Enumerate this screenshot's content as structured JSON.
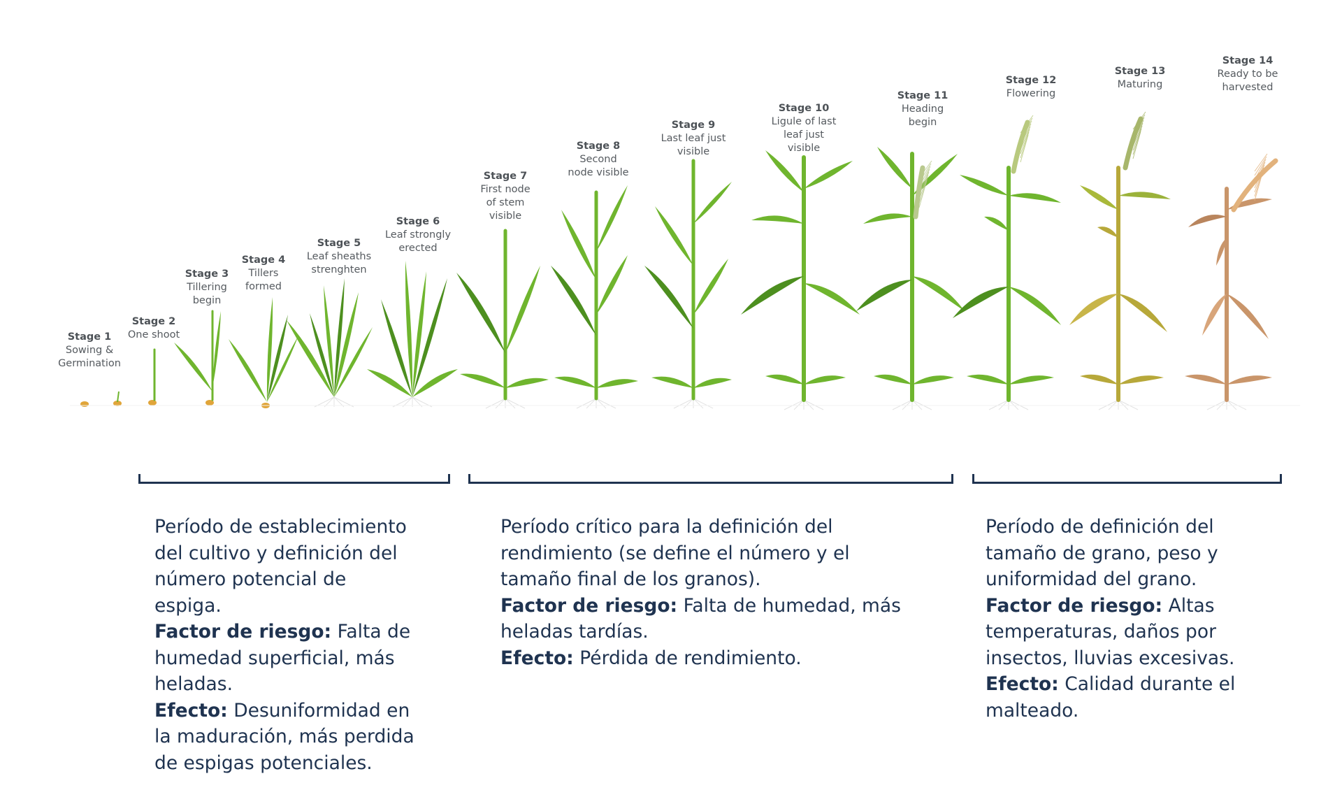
{
  "stages": [
    {
      "stage": "Stage 1",
      "desc": [
        "Sowing &",
        "Germination"
      ]
    },
    {
      "stage": "Stage 2",
      "desc": [
        "One shoot"
      ]
    },
    {
      "stage": "Stage 3",
      "desc": [
        "Tillering",
        "begin"
      ]
    },
    {
      "stage": "Stage 4",
      "desc": [
        "Tillers",
        "formed"
      ]
    },
    {
      "stage": "Stage 5",
      "desc": [
        "Leaf sheaths",
        "strenghten"
      ]
    },
    {
      "stage": "Stage 6",
      "desc": [
        "Leaf strongly",
        "erected"
      ]
    },
    {
      "stage": "Stage 7",
      "desc": [
        "First node",
        "of stem",
        "visible"
      ]
    },
    {
      "stage": "Stage 8",
      "desc": [
        "Second",
        "node visible"
      ]
    },
    {
      "stage": "Stage 9",
      "desc": [
        "Last leaf just",
        "visible"
      ]
    },
    {
      "stage": "Stage 10",
      "desc": [
        "Ligule of last",
        "leaf just",
        "visible"
      ]
    },
    {
      "stage": "Stage 11",
      "desc": [
        "Heading",
        "begin"
      ]
    },
    {
      "stage": "Stage 12",
      "desc": [
        "Flowering"
      ]
    },
    {
      "stage": "Stage 13",
      "desc": [
        "Maturing"
      ]
    },
    {
      "stage": "Stage 14",
      "desc": [
        "Ready to be",
        "harvested"
      ]
    }
  ],
  "periods": [
    {
      "intro_lines": [
        "Período de establecimiento",
        "del cultivo y definición del",
        "número potencial de",
        "espiga."
      ],
      "risk_label": "Factor de riesgo:",
      "risk_lines": [
        "Falta de",
        "humedad superficial, más",
        "heladas."
      ],
      "effect_label": "Efecto:",
      "effect_lines": [
        "Desuniformidad en",
        "la maduración, más perdida",
        "de espigas potenciales."
      ]
    },
    {
      "intro_lines": [
        "Período crítico para la definición del",
        "rendimiento (se define el número y el",
        "tamaño final de los granos)."
      ],
      "risk_label": "Factor de riesgo:",
      "risk_lines": [
        "Falta de humedad, más",
        "heladas tardías."
      ],
      "effect_label": "Efecto:",
      "effect_lines": [
        "Pérdida de rendimiento."
      ]
    },
    {
      "intro_lines": [
        "Período de definición del",
        "tamaño de grano, peso y",
        "uniformidad del grano."
      ],
      "risk_label": "Factor de riesgo:",
      "risk_lines": [
        "Altas",
        "temperaturas, daños por",
        "insectos, lluvias excesivas."
      ],
      "effect_label": "Efecto:",
      "effect_lines": [
        "Calidad durante el",
        "malteado."
      ]
    }
  ],
  "colors": {
    "text_dark_blue": "#1f3350",
    "stage_label_grey": "#555a5f",
    "leaf_green": "#6fb52e",
    "leaf_dark_green": "#4d8f1f",
    "maturing_yellow": "#b7a83a",
    "harvest_tan": "#c9956a",
    "seed_orange": "#e0a53a"
  }
}
